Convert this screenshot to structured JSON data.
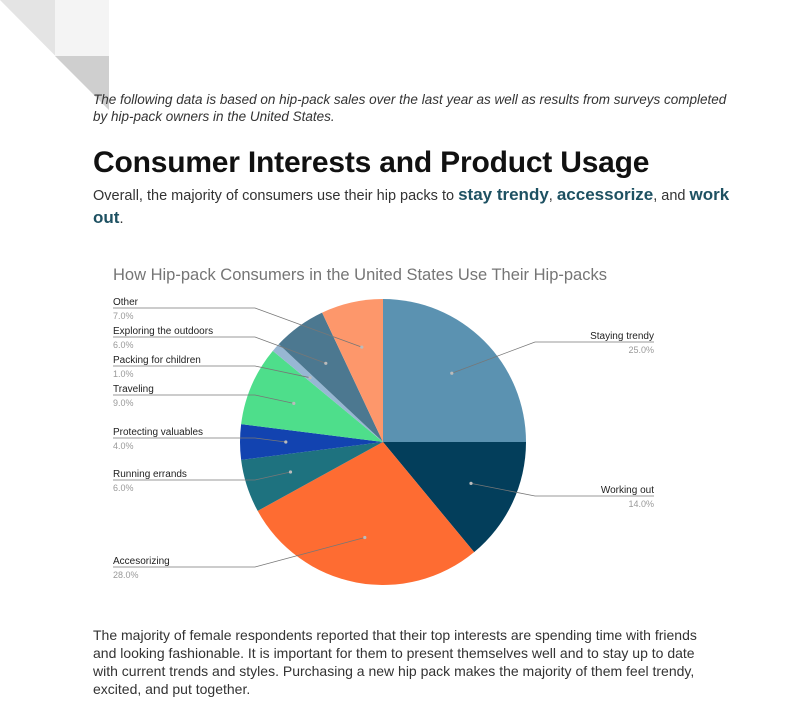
{
  "document": {
    "intro": "The following data is based on hip-pack sales over the last year as well as results from surveys completed by hip-pack owners in the United States.",
    "title": "Consumer Interests and Product Usage",
    "summary": {
      "lead": "Overall, the majority of consumers use their hip packs to ",
      "highlight_1": "stay trendy",
      "sep_1": ", ",
      "highlight_2": "accessorize",
      "sep_2": ", and ",
      "highlight_3": "work out",
      "end": "."
    },
    "closing": "The majority of female respondents reported that their top interests are spending time with friends and looking fashionable. It is important for them to present themselves well and to stay up to date with current trends and styles. Purchasing a new hip pack makes the majority of them feel trendy, excited, and put together."
  },
  "chart_data": {
    "type": "pie",
    "title": "How Hip-pack Consumers in the United States Use Their Hip-packs",
    "series": [
      {
        "label": "Staying trendy",
        "value": 25.0,
        "pct_label": "25.0%",
        "color": "#5b92b1"
      },
      {
        "label": "Working out",
        "value": 14.0,
        "pct_label": "14.0%",
        "color": "#033e5b"
      },
      {
        "label": "Accesorizing",
        "value": 28.0,
        "pct_label": "28.0%",
        "color": "#fe6c32"
      },
      {
        "label": "Running errands",
        "value": 6.0,
        "pct_label": "6.0%",
        "color": "#1e727f"
      },
      {
        "label": "Protecting valuables",
        "value": 4.0,
        "pct_label": "4.0%",
        "color": "#1243b0"
      },
      {
        "label": "Traveling",
        "value": 9.0,
        "pct_label": "9.0%",
        "color": "#4ede8b"
      },
      {
        "label": "Packing for children",
        "value": 1.0,
        "pct_label": "1.0%",
        "color": "#97b7d3"
      },
      {
        "label": "Exploring the outdoors",
        "value": 6.0,
        "pct_label": "6.0%",
        "color": "#4c7890"
      },
      {
        "label": "Other",
        "value": 7.0,
        "pct_label": "7.0%",
        "color": "#fd976b"
      }
    ]
  }
}
